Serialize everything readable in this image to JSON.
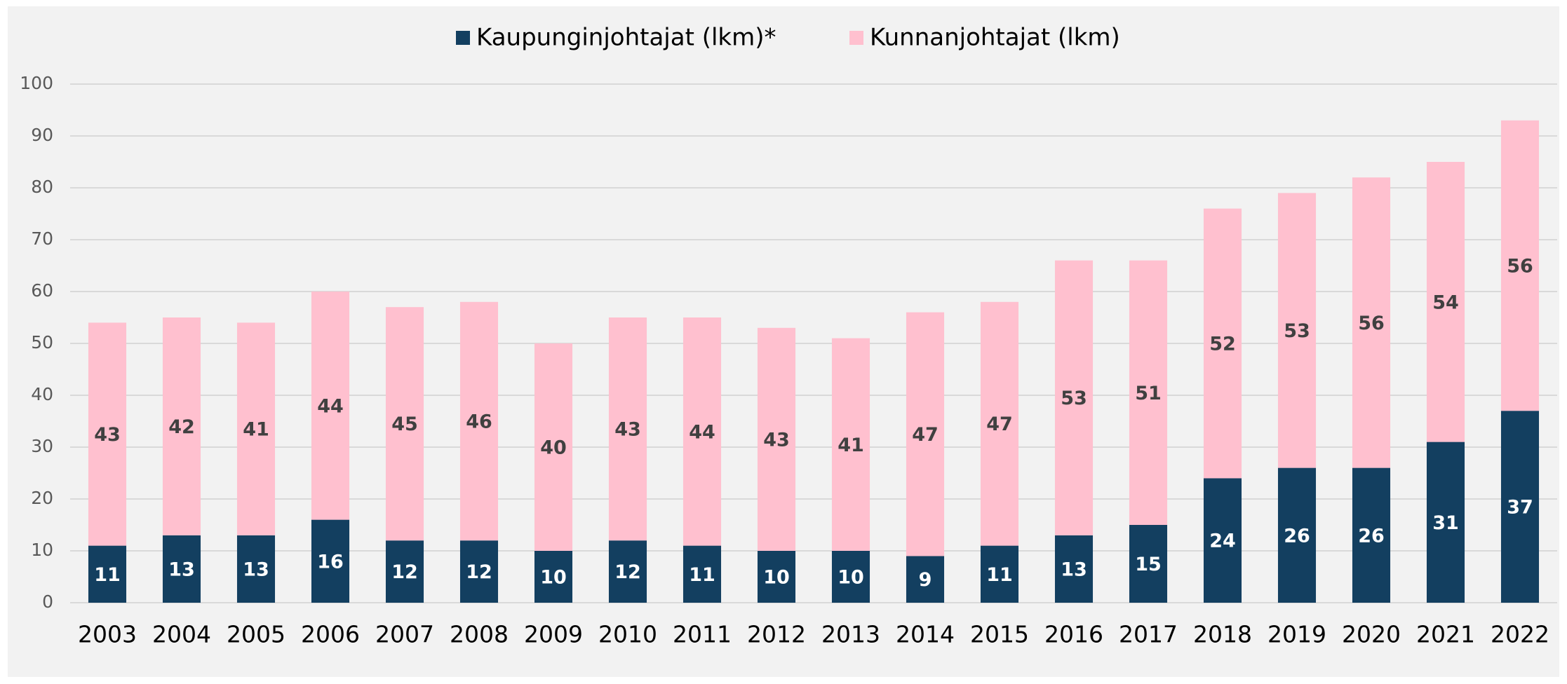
{
  "chart_data": {
    "type": "stacked_bar",
    "categories": [
      "2003",
      "2004",
      "2005",
      "2006",
      "2007",
      "2008",
      "2009",
      "2010",
      "2011",
      "2012",
      "2013",
      "2014",
      "2015",
      "2016",
      "2017",
      "2018",
      "2019",
      "2020",
      "2021",
      "2022"
    ],
    "series": [
      {
        "name": "Kaupunginjohtajat (lkm)*",
        "color": "#133f60",
        "values": [
          11,
          13,
          13,
          16,
          12,
          12,
          10,
          12,
          11,
          10,
          10,
          9,
          11,
          13,
          15,
          24,
          26,
          26,
          31,
          37
        ]
      },
      {
        "name": "Kunnanjohtajat (lkm)",
        "color": "#ffc0cf",
        "values": [
          43,
          42,
          41,
          44,
          45,
          46,
          40,
          43,
          44,
          43,
          41,
          47,
          47,
          53,
          51,
          52,
          53,
          56,
          54,
          56
        ]
      }
    ],
    "ylim": [
      0,
      100
    ],
    "yticks": [
      0,
      10,
      20,
      30,
      40,
      50,
      60,
      70,
      80,
      90,
      100
    ],
    "grid": true,
    "legend": "top"
  }
}
